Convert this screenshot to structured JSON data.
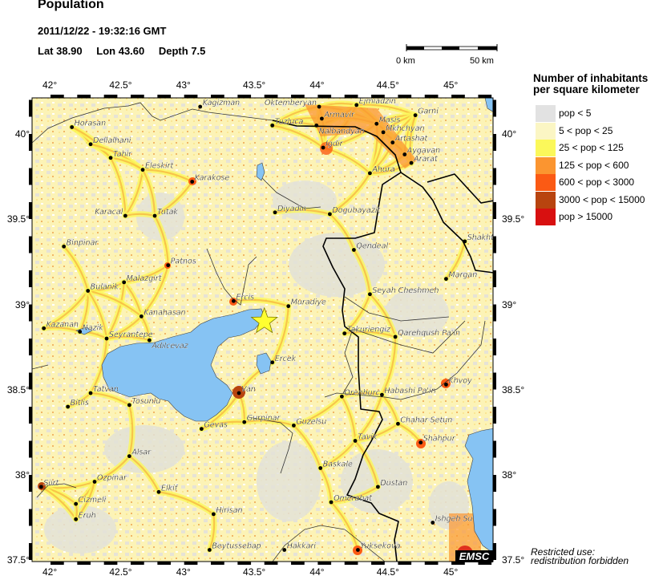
{
  "header": {
    "title": "Population",
    "datetime": "2011/12/22 - 19:32:16 GMT",
    "lat": "Lat 38.90",
    "lon": "Lon  43.60",
    "depth": "Depth  7.5"
  },
  "scale_bar": {
    "start_label": "0 km",
    "end_label": "50 km"
  },
  "legend": {
    "title_line1": "Number of inhabitants",
    "title_line2": "per square kilometer",
    "items": [
      {
        "label": "pop < 5",
        "color": "#e2e2e2"
      },
      {
        "label": "5 < pop < 25",
        "color": "#fbf6c4"
      },
      {
        "label": "25 < pop < 125",
        "color": "#fbf85a"
      },
      {
        "label": "125 < pop < 600",
        "color": "#fb9530"
      },
      {
        "label": "600 < pop < 3000",
        "color": "#fb5a14"
      },
      {
        "label": "3000 < pop < 15000",
        "color": "#b8440f"
      },
      {
        "label": "pop > 15000",
        "color": "#d81010"
      }
    ]
  },
  "axes": {
    "lon_ticks": [
      "42°",
      "42.5°",
      "43°",
      "43.5°",
      "44°",
      "44.5°",
      "45°"
    ],
    "lat_ticks": [
      "40°",
      "39.5°",
      "39°",
      "38.5°",
      "38°",
      "37.5°"
    ]
  },
  "epicenter": {
    "lat": 38.9,
    "lon": 43.6,
    "color": "#ffff30"
  },
  "colors": {
    "water": "#86c3f3",
    "land_base": "#fcf3b6",
    "border": "#000000"
  },
  "cities": [
    {
      "name": "Horasan",
      "lon": 42.16,
      "lat": 40.04
    },
    {
      "name": "Dellalhani",
      "lon": 42.3,
      "lat": 39.94
    },
    {
      "name": "Tahir",
      "lon": 42.45,
      "lat": 39.86
    },
    {
      "name": "Eleskirt",
      "lon": 42.69,
      "lat": 39.79
    },
    {
      "name": "Karakose",
      "lon": 43.06,
      "lat": 39.72
    },
    {
      "name": "Kagizman",
      "lon": 43.12,
      "lat": 40.16
    },
    {
      "name": "Karacal",
      "lon": 42.56,
      "lat": 39.52
    },
    {
      "name": "Tutak",
      "lon": 42.78,
      "lat": 39.52
    },
    {
      "name": "Binpinar",
      "lon": 42.1,
      "lat": 39.34
    },
    {
      "name": "Patnos",
      "lon": 42.88,
      "lat": 39.23
    },
    {
      "name": "Malazgirt",
      "lon": 42.55,
      "lat": 39.13
    },
    {
      "name": "Bulanik",
      "lon": 42.28,
      "lat": 39.08
    },
    {
      "name": "Ercis",
      "lon": 43.37,
      "lat": 39.02
    },
    {
      "name": "Kanahasan",
      "lon": 42.68,
      "lat": 38.93
    },
    {
      "name": "Kazanan",
      "lon": 41.95,
      "lat": 38.86
    },
    {
      "name": "Nazik",
      "lon": 42.22,
      "lat": 38.84
    },
    {
      "name": "Seyrantepe",
      "lon": 42.42,
      "lat": 38.8
    },
    {
      "name": "Adilcevaz",
      "lon": 42.74,
      "lat": 38.79
    },
    {
      "name": "Tatvan",
      "lon": 42.3,
      "lat": 38.48
    },
    {
      "name": "Bitlis",
      "lon": 42.13,
      "lat": 38.4
    },
    {
      "name": "Tosunlu",
      "lon": 42.59,
      "lat": 38.41
    },
    {
      "name": "Van",
      "lon": 43.41,
      "lat": 38.48
    },
    {
      "name": "Gevas",
      "lon": 43.13,
      "lat": 38.27
    },
    {
      "name": "Gurpinar",
      "lon": 43.45,
      "lat": 38.31
    },
    {
      "name": "Alsar",
      "lon": 42.59,
      "lat": 38.11
    },
    {
      "name": "Ozpinar",
      "lon": 42.33,
      "lat": 37.96
    },
    {
      "name": "Siirt",
      "lon": 41.93,
      "lat": 37.93
    },
    {
      "name": "Elkif",
      "lon": 42.81,
      "lat": 37.9
    },
    {
      "name": "Cizmeli",
      "lon": 42.19,
      "lat": 37.83
    },
    {
      "name": "Eruh",
      "lon": 42.19,
      "lat": 37.74
    },
    {
      "name": "Hirisan",
      "lon": 43.22,
      "lat": 37.77
    },
    {
      "name": "Beytussebap",
      "lon": 43.19,
      "lat": 37.56
    },
    {
      "name": "Tuzluca",
      "lon": 43.66,
      "lat": 40.05
    },
    {
      "name": "Oktemberyan",
      "lon": 44.01,
      "lat": 40.16
    },
    {
      "name": "Ejmiadzin",
      "lon": 44.29,
      "lat": 40.17
    },
    {
      "name": "Armavir",
      "lon": 44.03,
      "lat": 40.09
    },
    {
      "name": "Nalbandyan",
      "lon": 43.99,
      "lat": 40.05
    },
    {
      "name": "Masis",
      "lon": 44.44,
      "lat": 40.06
    },
    {
      "name": "Mkhchyan",
      "lon": 44.49,
      "lat": 40.01
    },
    {
      "name": "Artashat",
      "lon": 44.56,
      "lat": 39.95
    },
    {
      "name": "Aygavan",
      "lon": 44.65,
      "lat": 39.88
    },
    {
      "name": "Ararat",
      "lon": 44.7,
      "lat": 39.83
    },
    {
      "name": "Garni",
      "lon": 44.73,
      "lat": 40.11
    },
    {
      "name": "Igdir",
      "lon": 44.04,
      "lat": 39.92
    },
    {
      "name": "Ahura",
      "lon": 44.39,
      "lat": 39.77
    },
    {
      "name": "Diyadin",
      "lon": 43.68,
      "lat": 39.54
    },
    {
      "name": "Dogubayazit",
      "lon": 44.09,
      "lat": 39.53
    },
    {
      "name": "Qendeal",
      "lon": 44.27,
      "lat": 39.32
    },
    {
      "name": "Shakht",
      "lon": 45.1,
      "lat": 39.37
    },
    {
      "name": "Margan",
      "lon": 44.96,
      "lat": 39.15
    },
    {
      "name": "Seyah Cheshmeh",
      "lon": 44.39,
      "lat": 39.06
    },
    {
      "name": "Muradiye",
      "lon": 43.78,
      "lat": 38.99
    },
    {
      "name": "Takuriengiz",
      "lon": 44.2,
      "lat": 38.83
    },
    {
      "name": "Qarehqush Pa'in",
      "lon": 44.58,
      "lat": 38.81
    },
    {
      "name": "Ercek",
      "lon": 43.66,
      "lat": 38.66
    },
    {
      "name": "Khvoy",
      "lon": 44.96,
      "lat": 38.53
    },
    {
      "name": "Orenburc",
      "lon": 44.18,
      "lat": 38.46
    },
    {
      "name": "Habashi Pa'in",
      "lon": 44.48,
      "lat": 38.47
    },
    {
      "name": "Chahar Setun",
      "lon": 44.6,
      "lat": 38.3
    },
    {
      "name": "Guzelsu",
      "lon": 43.82,
      "lat": 38.29
    },
    {
      "name": "Tavik",
      "lon": 44.28,
      "lat": 38.2
    },
    {
      "name": "Shahpur",
      "lon": 44.77,
      "lat": 38.19
    },
    {
      "name": "Baskale",
      "lon": 44.02,
      "lat": 38.04
    },
    {
      "name": "Dustan",
      "lon": 44.45,
      "lat": 37.93
    },
    {
      "name": "Omerabat",
      "lon": 44.1,
      "lat": 37.84
    },
    {
      "name": "Ishgeh Su",
      "lon": 44.86,
      "lat": 37.72
    },
    {
      "name": "Hakkari",
      "lon": 43.75,
      "lat": 37.56
    },
    {
      "name": "Yuksekova",
      "lon": 44.3,
      "lat": 37.56
    }
  ],
  "logo": "EMSC",
  "footer": {
    "line1": "Restricted use:",
    "line2": "redistribution forbidden"
  }
}
